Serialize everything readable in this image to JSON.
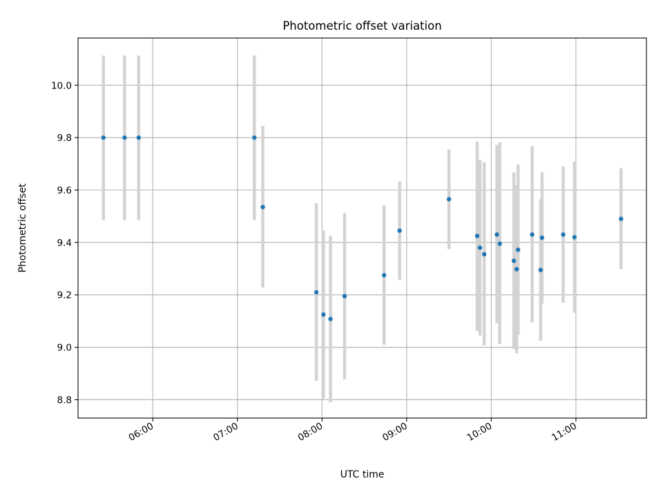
{
  "chart_data": {
    "type": "scatter",
    "title": "Photometric offset variation",
    "xlabel": "UTC time",
    "ylabel": "Photometric offset",
    "xlim": [
      "05:07",
      "11:50"
    ],
    "ylim": [
      8.73,
      10.18
    ],
    "grid": true,
    "x_ticks": [
      "06:00",
      "07:00",
      "08:00",
      "09:00",
      "10:00",
      "11:00"
    ],
    "y_ticks": [
      "8.8",
      "9.0",
      "9.2",
      "9.4",
      "9.6",
      "9.8",
      "10.0"
    ],
    "colors": {
      "point": "#1f77b4",
      "error_bar": "#d3d3d3"
    },
    "points": [
      {
        "x": "05:25",
        "y": 9.8,
        "lo": 9.485,
        "hi": 10.113
      },
      {
        "x": "05:40",
        "y": 9.8,
        "lo": 9.485,
        "hi": 10.113
      },
      {
        "x": "05:50",
        "y": 9.8,
        "lo": 9.485,
        "hi": 10.113
      },
      {
        "x": "07:12",
        "y": 9.8,
        "lo": 9.485,
        "hi": 10.113
      },
      {
        "x": "07:18",
        "y": 9.535,
        "lo": 9.228,
        "hi": 9.845
      },
      {
        "x": "07:56",
        "y": 9.21,
        "lo": 8.872,
        "hi": 9.55
      },
      {
        "x": "08:01",
        "y": 9.125,
        "lo": 8.805,
        "hi": 9.445
      },
      {
        "x": "08:06",
        "y": 9.108,
        "lo": 8.79,
        "hi": 9.425
      },
      {
        "x": "08:16",
        "y": 9.195,
        "lo": 8.878,
        "hi": 9.512
      },
      {
        "x": "08:44",
        "y": 9.275,
        "lo": 9.01,
        "hi": 9.542
      },
      {
        "x": "08:55",
        "y": 9.445,
        "lo": 9.258,
        "hi": 9.633
      },
      {
        "x": "09:30",
        "y": 9.565,
        "lo": 9.375,
        "hi": 9.755
      },
      {
        "x": "09:50",
        "y": 9.425,
        "lo": 9.063,
        "hi": 9.785
      },
      {
        "x": "09:52",
        "y": 9.38,
        "lo": 9.045,
        "hi": 9.715
      },
      {
        "x": "09:55",
        "y": 9.355,
        "lo": 9.007,
        "hi": 9.705
      },
      {
        "x": "10:04",
        "y": 9.43,
        "lo": 9.092,
        "hi": 9.772
      },
      {
        "x": "10:06",
        "y": 9.395,
        "lo": 9.012,
        "hi": 9.782
      },
      {
        "x": "10:16",
        "y": 9.33,
        "lo": 8.993,
        "hi": 9.667
      },
      {
        "x": "10:18",
        "y": 9.298,
        "lo": 8.978,
        "hi": 9.618
      },
      {
        "x": "10:19",
        "y": 9.372,
        "lo": 9.047,
        "hi": 9.698
      },
      {
        "x": "10:29",
        "y": 9.43,
        "lo": 9.095,
        "hi": 9.767
      },
      {
        "x": "10:35",
        "y": 9.295,
        "lo": 9.025,
        "hi": 9.565
      },
      {
        "x": "10:36",
        "y": 9.418,
        "lo": 9.167,
        "hi": 9.668
      },
      {
        "x": "10:51",
        "y": 9.43,
        "lo": 9.17,
        "hi": 9.69
      },
      {
        "x": "10:59",
        "y": 9.42,
        "lo": 9.132,
        "hi": 9.708
      },
      {
        "x": "11:32",
        "y": 9.49,
        "lo": 9.298,
        "hi": 9.683
      }
    ]
  }
}
